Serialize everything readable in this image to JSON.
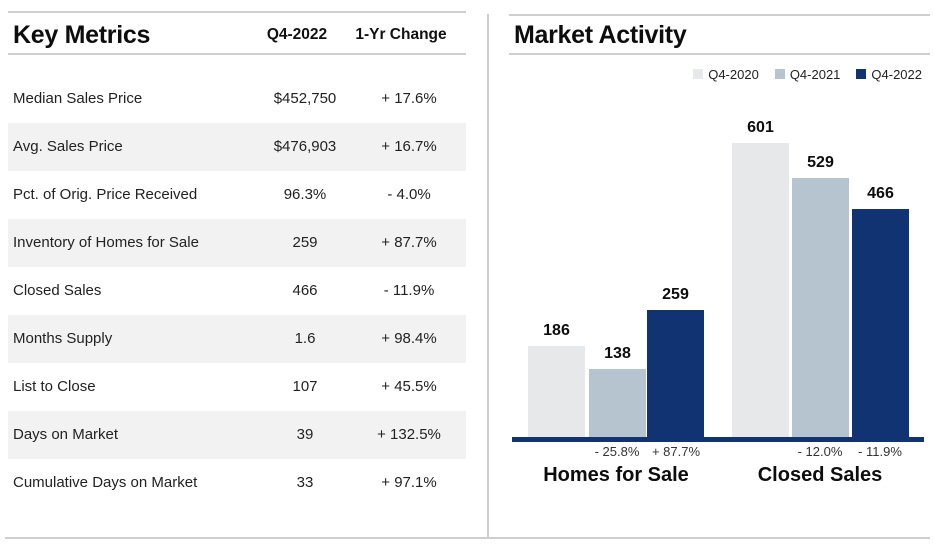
{
  "left_panel": {
    "title": "Key Metrics",
    "columns": [
      "Q4-2022",
      "1-Yr Change"
    ],
    "rows": [
      {
        "label": "Median Sales Price",
        "value": "$452,750",
        "change": "+ 17.6%"
      },
      {
        "label": "Avg. Sales Price",
        "value": "$476,903",
        "change": "+ 16.7%"
      },
      {
        "label": "Pct. of Orig. Price Received",
        "value": "96.3%",
        "change": "- 4.0%"
      },
      {
        "label": "Inventory of Homes for Sale",
        "value": "259",
        "change": "+ 87.7%"
      },
      {
        "label": "Closed Sales",
        "value": "466",
        "change": "- 11.9%"
      },
      {
        "label": "Months Supply",
        "value": "1.6",
        "change": "+ 98.4%"
      },
      {
        "label": "List to Close",
        "value": "107",
        "change": "+ 45.5%"
      },
      {
        "label": "Days on Market",
        "value": "39",
        "change": "+ 132.5%"
      },
      {
        "label": "Cumulative Days on Market",
        "value": "33",
        "change": "+ 97.1%"
      }
    ]
  },
  "right_panel": {
    "title": "Market Activity"
  },
  "chart_data": {
    "type": "bar",
    "title": "Market Activity",
    "categories": [
      "Homes for Sale",
      "Closed Sales"
    ],
    "series": [
      {
        "name": "Q4-2020",
        "values": [
          186,
          601
        ],
        "color": "#e7e8e9"
      },
      {
        "name": "Q4-2021",
        "values": [
          138,
          529
        ],
        "color": "#b6c4d0"
      },
      {
        "name": "Q4-2022",
        "values": [
          259,
          466
        ],
        "color": "#113371"
      }
    ],
    "changes": [
      "- 25.8%",
      "+ 87.7%",
      "- 12.0%",
      "- 11.9%"
    ],
    "ylim": [
      0,
      601
    ],
    "grid": false,
    "legend_position": "top-right",
    "xlabel": "",
    "ylabel": ""
  },
  "colors": {
    "accent_navy": "#113371",
    "bar_gray": "#e7e8e9",
    "bar_bluegray": "#b6c4d0",
    "row_alt": "#f2f2f2",
    "divider": "#cfcfcf"
  }
}
